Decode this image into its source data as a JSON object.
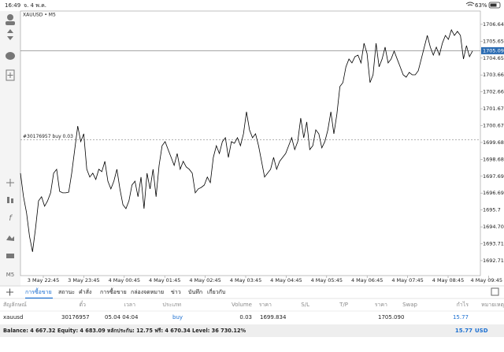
{
  "status_bar": {
    "time": "16:49",
    "date": "จ. 4 พ.ค.",
    "battery": "63%"
  },
  "toolbar": {
    "timeframe": "M5"
  },
  "chart_data": {
    "type": "line",
    "symbol": "XAUUSD • M5",
    "color": "#000000",
    "ylim": [
      1691.83,
      1707.43
    ],
    "yticks": [
      1706.645,
      1705.65,
      1704.655,
      1703.66,
      1702.665,
      1701.67,
      1700.675,
      1699.68,
      1698.685,
      1697.69,
      1696.695,
      1695.7,
      1694.705,
      1693.71,
      1692.715
    ],
    "x_labels": [
      "3 May 22:45",
      "3 May 23:45",
      "4 May 00:45",
      "4 May 01:45",
      "4 May 02:45",
      "4 May 03:45",
      "4 May 04:45",
      "4 May 05:45",
      "4 May 06:45",
      "4 May 07:45",
      "4 May 08:45",
      "4 May 09:45"
    ],
    "current_price": {
      "value": 1705.09,
      "label": "1705.090"
    },
    "order_line": {
      "label": "#30176957 buy 0.03",
      "value": 1699.834
    },
    "values": [
      1697.87,
      1696.48,
      1695.55,
      1694.15,
      1693.23,
      1694.62,
      1696.24,
      1696.48,
      1695.92,
      1696.24,
      1696.71,
      1697.87,
      1698.1,
      1696.8,
      1696.71,
      1696.71,
      1696.75,
      1697.87,
      1699.26,
      1700.65,
      1699.73,
      1700.19,
      1698.1,
      1697.64,
      1697.87,
      1697.5,
      1698.1,
      1697.96,
      1698.57,
      1697.4,
      1696.94,
      1697.4,
      1698.1,
      1696.94,
      1696.01,
      1695.78,
      1696.24,
      1697.17,
      1697.4,
      1696.48,
      1697.64,
      1695.78,
      1697.87,
      1696.94,
      1698.1,
      1696.48,
      1698.33,
      1699.49,
      1699.73,
      1699.26,
      1698.8,
      1698.33,
      1699.03,
      1698.1,
      1698.57,
      1698.24,
      1698.1,
      1697.87,
      1696.71,
      1696.94,
      1697.03,
      1697.17,
      1697.64,
      1697.31,
      1698.8,
      1699.49,
      1699.03,
      1699.73,
      1699.96,
      1698.8,
      1699.73,
      1699.63,
      1699.96,
      1699.49,
      1700.19,
      1701.49,
      1700.42,
      1699.96,
      1700.19,
      1699.49,
      1698.57,
      1697.64,
      1697.87,
      1698.1,
      1698.8,
      1698.1,
      1698.57,
      1698.8,
      1699.03,
      1699.49,
      1699.96,
      1699.26,
      1699.73,
      1701.12,
      1699.96,
      1700.89,
      1699.26,
      1699.49,
      1700.42,
      1700.19,
      1699.36,
      1699.73,
      1700.42,
      1701.49,
      1700.19,
      1701.35,
      1702.98,
      1703.21,
      1704.14,
      1704.6,
      1704.37,
      1704.74,
      1704.83,
      1704.37,
      1705.53,
      1704.93,
      1703.21,
      1703.67,
      1705.53,
      1704.14,
      1704.6,
      1705.3,
      1704.37,
      1704.6,
      1705.07,
      1704.6,
      1704.14,
      1703.67,
      1703.53,
      1703.81,
      1703.67,
      1703.67,
      1703.91,
      1704.6,
      1705.3,
      1705.99,
      1705.3,
      1704.83,
      1705.3,
      1704.83,
      1705.53,
      1705.99,
      1705.76,
      1706.32,
      1705.99,
      1706.23,
      1705.99,
      1704.6,
      1705.39,
      1704.74,
      1705.07
    ]
  },
  "tabs": [
    "การซื้อขาย",
    "สถานะ",
    "คำสั่ง",
    "การซื้อขาย",
    "กล่องจดหมาย",
    "ข่าว",
    "บันทึก",
    "เกี่ยวกับ"
  ],
  "table": {
    "headers": [
      "สัญลักษณ์",
      "ตั๋ว",
      "เวลา",
      "ประเภท",
      "Volume",
      "ราคา",
      "S/L",
      "T/P",
      "ราคา",
      "Swap",
      "กำไร",
      "หมายเหตุ"
    ],
    "row": {
      "symbol": "xauusd",
      "ticket": "30176957",
      "time": "05.04 04:04",
      "type": "buy",
      "volume": "0.03",
      "profit": "15.77"
    }
  },
  "footer": {
    "summary": "Balance: 4 667.32 Equity: 4 683.09 หลักประกัน: 12.75 ฟรี: 4 670.34 Level: 36 730.12%",
    "profit": "15.77",
    "currency": "USD"
  }
}
